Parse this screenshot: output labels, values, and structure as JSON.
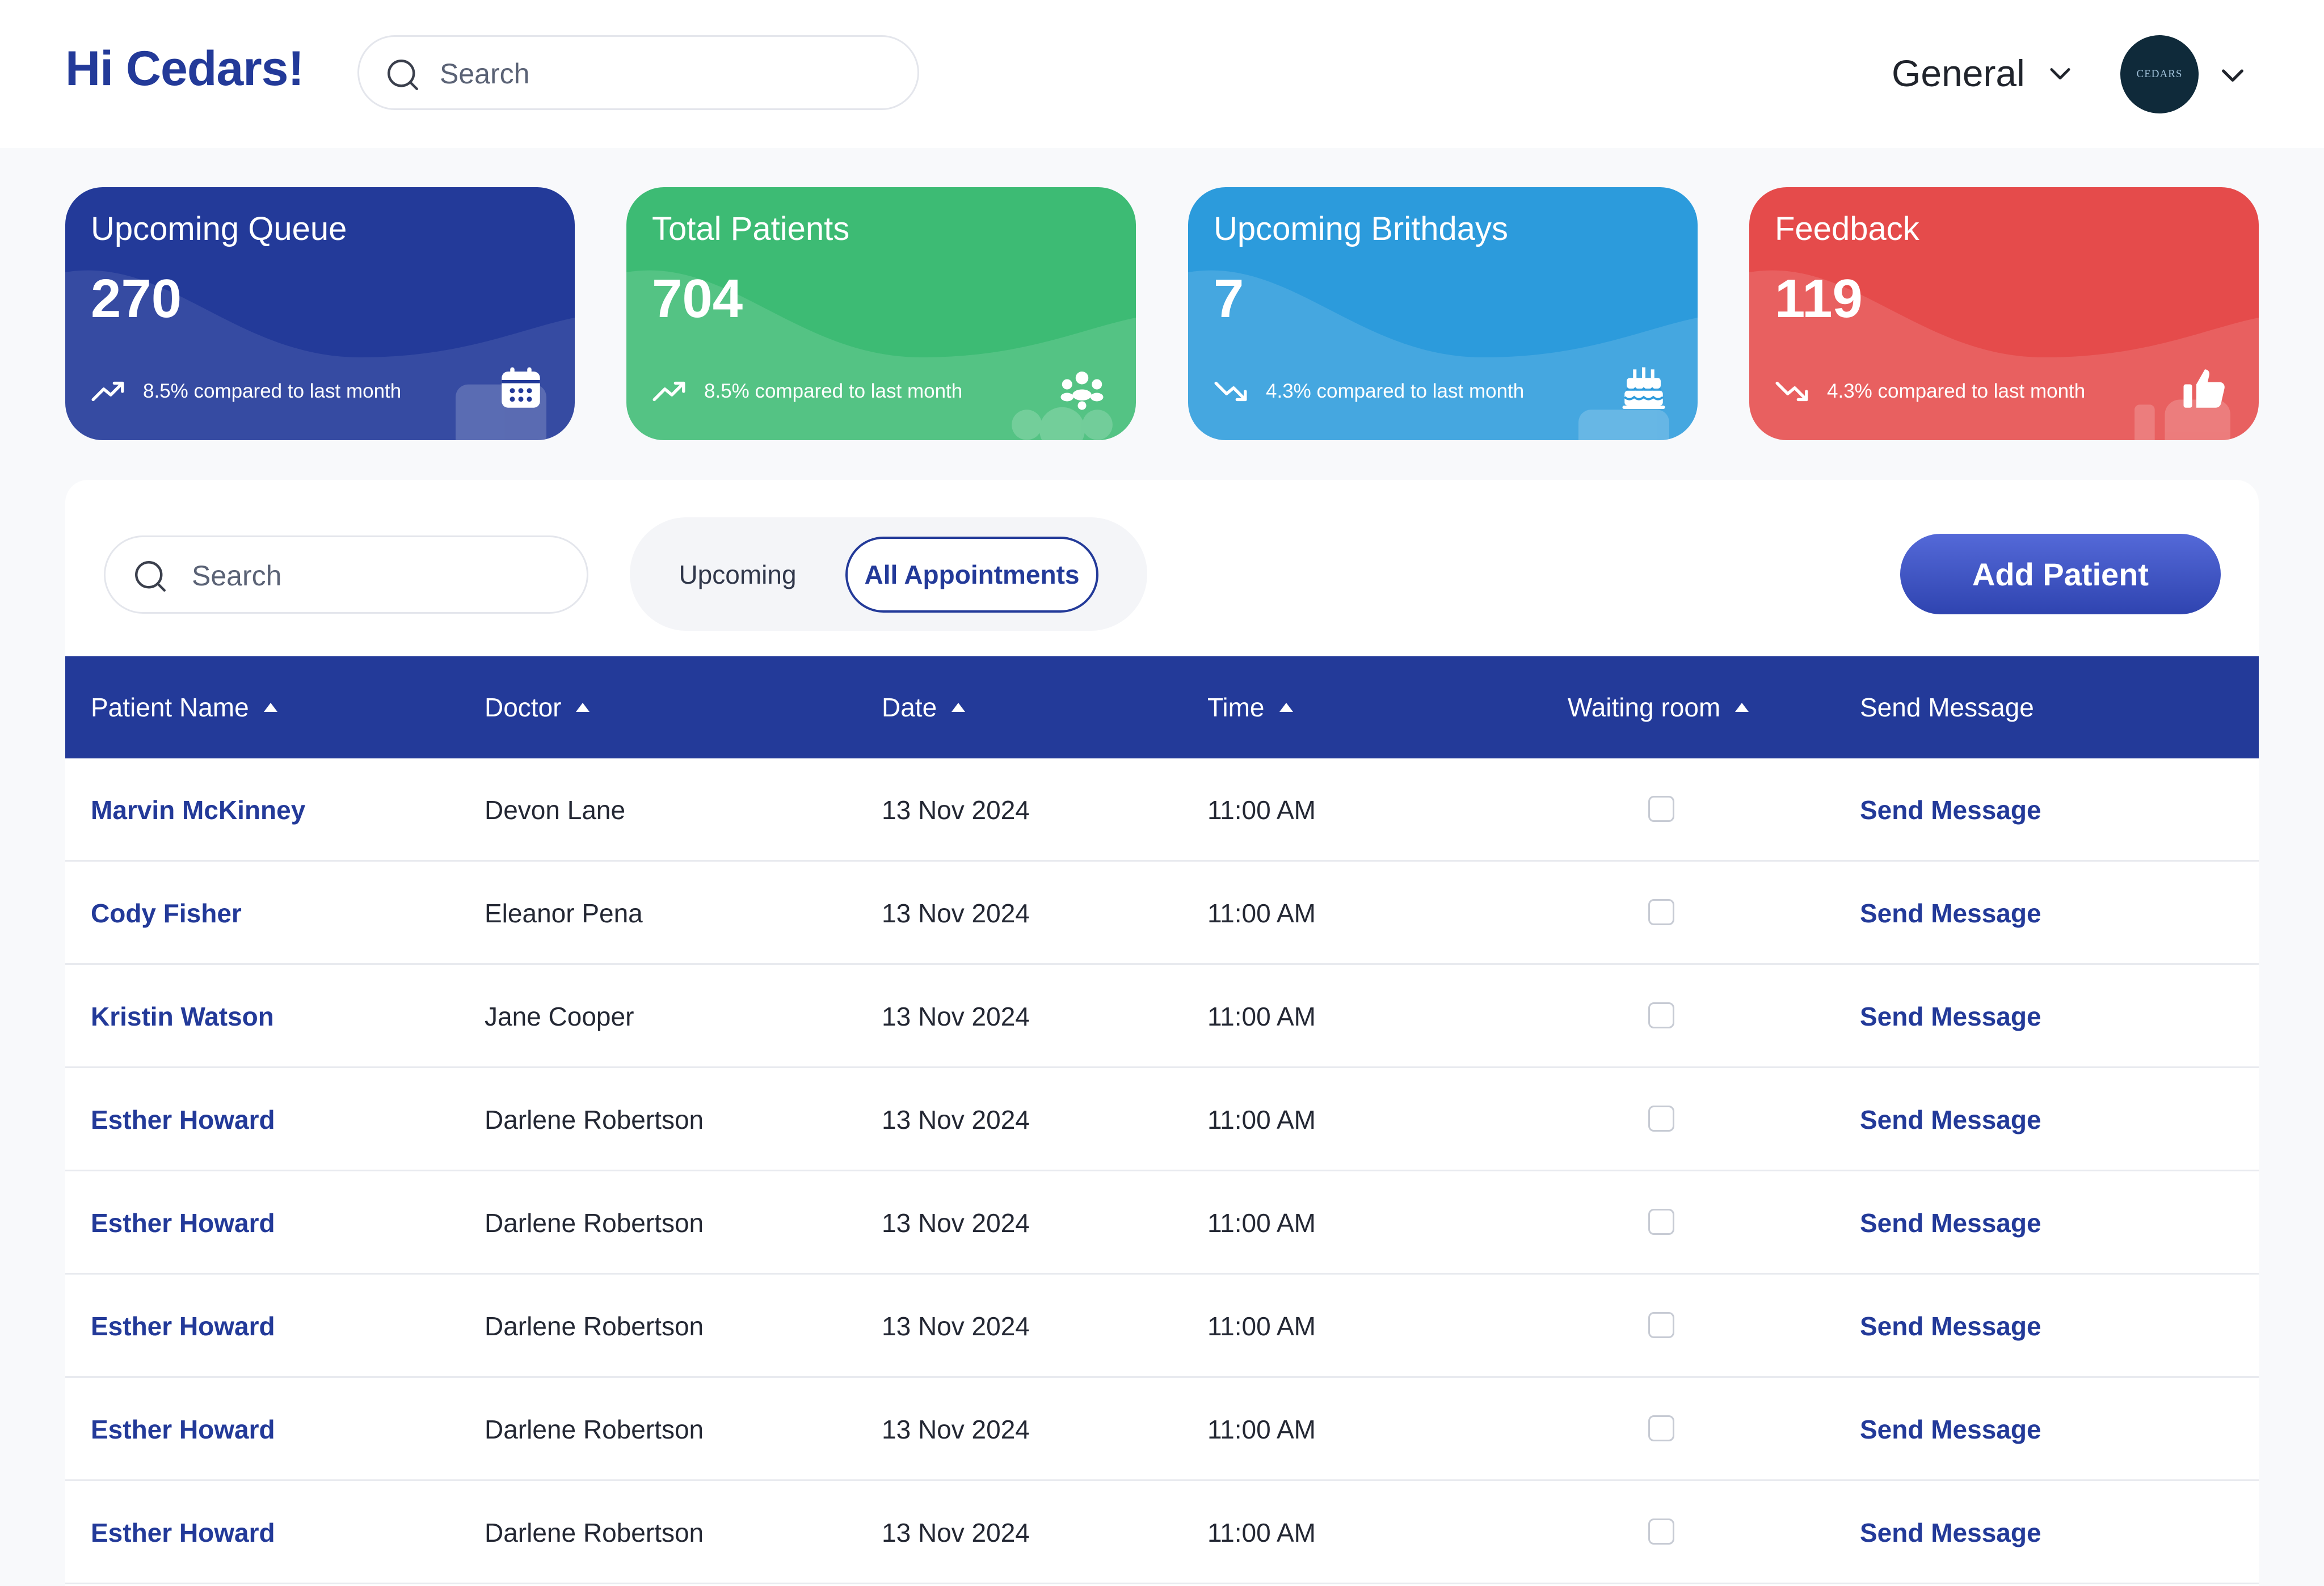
{
  "header": {
    "greeting": "Hi Cedars!",
    "search_placeholder": "Search",
    "workspace": "General",
    "avatar_text": "CEDARS"
  },
  "cards": [
    {
      "title": "Upcoming Queue",
      "value": "270",
      "trend": "8.5% compared to last month",
      "direction": "up",
      "color": "#233a99",
      "icon": "calendar-icon"
    },
    {
      "title": "Total Patients",
      "value": "704",
      "trend": "8.5% compared to last month",
      "direction": "up",
      "color": "#3dbb74",
      "icon": "group-icon"
    },
    {
      "title": "Upcoming Brithdays",
      "value": "7",
      "trend": "4.3% compared to last month",
      "direction": "down",
      "color": "#2c9bdc",
      "icon": "cake-icon"
    },
    {
      "title": "Feedback",
      "value": "119",
      "trend": "4.3% compared to last month",
      "direction": "down",
      "color": "#e54b4b",
      "icon": "thumbs-up-icon"
    }
  ],
  "panel": {
    "search_placeholder": "Search",
    "tabs": [
      {
        "label": "Upcoming",
        "active": false
      },
      {
        "label": "All Appointments",
        "active": true
      }
    ],
    "add_button": "Add Patient"
  },
  "table": {
    "columns": [
      "Patient Name",
      "Doctor",
      "Date",
      "Time",
      "Waiting room",
      "Send Message"
    ],
    "rows": [
      {
        "patient": "Marvin McKinney",
        "doctor": "Devon Lane",
        "date": "13 Nov 2024",
        "time": "11:00 AM",
        "waiting": false,
        "action": "Send Message"
      },
      {
        "patient": "Cody Fisher",
        "doctor": "Eleanor Pena",
        "date": "13 Nov 2024",
        "time": "11:00 AM",
        "waiting": false,
        "action": "Send Message"
      },
      {
        "patient": "Kristin Watson",
        "doctor": "Jane Cooper",
        "date": "13 Nov 2024",
        "time": "11:00 AM",
        "waiting": false,
        "action": "Send Message"
      },
      {
        "patient": "Esther Howard",
        "doctor": "Darlene Robertson",
        "date": "13 Nov 2024",
        "time": "11:00 AM",
        "waiting": false,
        "action": "Send Message"
      },
      {
        "patient": "Esther Howard",
        "doctor": "Darlene Robertson",
        "date": "13 Nov 2024",
        "time": "11:00 AM",
        "waiting": false,
        "action": "Send Message"
      },
      {
        "patient": "Esther Howard",
        "doctor": "Darlene Robertson",
        "date": "13 Nov 2024",
        "time": "11:00 AM",
        "waiting": false,
        "action": "Send Message"
      },
      {
        "patient": "Esther Howard",
        "doctor": "Darlene Robertson",
        "date": "13 Nov 2024",
        "time": "11:00 AM",
        "waiting": false,
        "action": "Send Message"
      },
      {
        "patient": "Esther Howard",
        "doctor": "Darlene Robertson",
        "date": "13 Nov 2024",
        "time": "11:00 AM",
        "waiting": false,
        "action": "Send Message"
      }
    ]
  }
}
